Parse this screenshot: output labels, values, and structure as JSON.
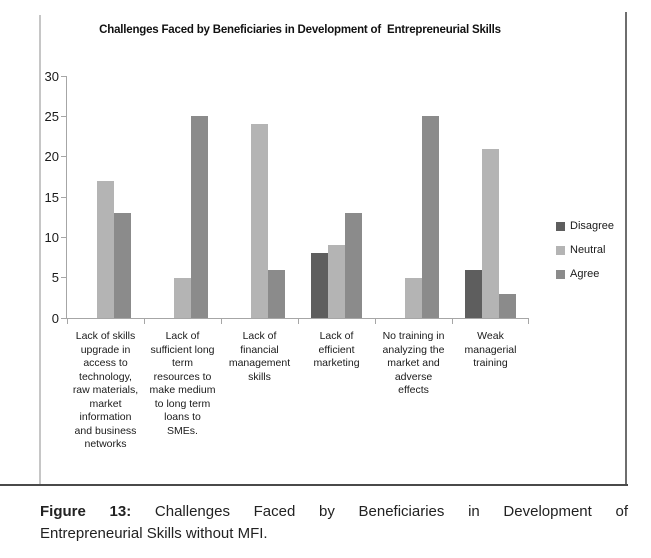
{
  "figure": {
    "caption": {
      "prefix": "Figure 13:",
      "line1_rest": "Challenges Faced by Beneficiaries in Development of",
      "line2": "Entrepreneurial Skills without MFI."
    }
  },
  "chart_data": {
    "type": "bar",
    "title": "Challenges Faced by Beneficiaries in Development of  Entrepreneurial Skills",
    "categories": [
      "Lack of skills upgrade in access to technology, raw materials, market information and business networks",
      "Lack of sufficient long term resources to make medium to long term loans to SMEs.",
      "Lack of financial management skills",
      "Lack of efficient marketing",
      "No training in analyzing the market and adverse effects",
      "Weak managerial training"
    ],
    "category_label_lines": [
      [
        "Lack of skills",
        "upgrade in",
        "access to",
        "technology,",
        "raw materials,",
        "market",
        "information",
        "and business",
        "networks"
      ],
      [
        "Lack of",
        "sufficient long",
        "term",
        "resources to",
        "make medium",
        "to long term",
        "loans to",
        "SMEs."
      ],
      [
        "Lack of",
        "financial",
        "management",
        "skills"
      ],
      [
        "Lack of",
        "efficient",
        "marketing"
      ],
      [
        "No training in",
        "analyzing the",
        "market and",
        "adverse",
        "effects"
      ],
      [
        "Weak",
        "managerial",
        "training"
      ]
    ],
    "series": [
      {
        "name": "Disagree",
        "color": "#5e5e5e",
        "values": [
          0,
          0,
          0,
          8,
          0,
          6
        ]
      },
      {
        "name": "Neutral",
        "color": "#b4b4b4",
        "values": [
          17,
          5,
          24,
          9,
          5,
          21
        ]
      },
      {
        "name": "Agree",
        "color": "#8b8b8b",
        "values": [
          13,
          25,
          6,
          13,
          25,
          3
        ]
      }
    ],
    "xlabel": "",
    "ylabel": "",
    "ylim": [
      0,
      30
    ],
    "yticks": [
      0,
      5,
      10,
      15,
      20,
      25,
      30
    ],
    "grid": false,
    "legend_position": "right",
    "axis_color": "#a6a6a6"
  }
}
